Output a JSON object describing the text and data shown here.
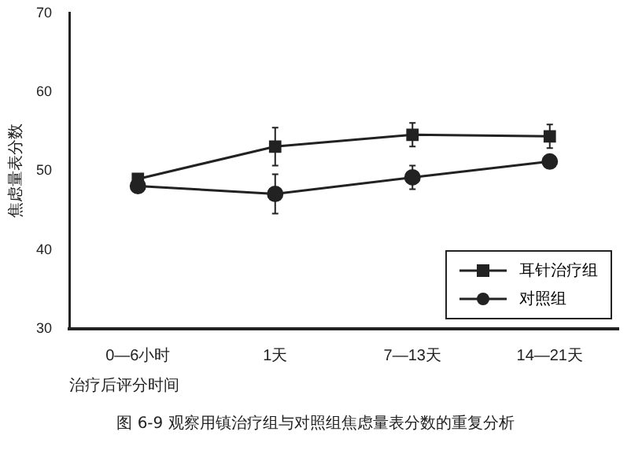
{
  "chart_data": {
    "type": "line",
    "title": "图 6-9 观察用镇治疗组与对照组焦虑量表分数的重复分析",
    "xlabel": "治疗后评分时间",
    "ylabel": "焦虑量表分数",
    "categories": [
      "0—6小时",
      "1天",
      "7—13天",
      "14—21天"
    ],
    "series": [
      {
        "name": "耳针治疗组",
        "color": "#222222",
        "marker": "square",
        "values": [
          49,
          53.1,
          54.6,
          54.4
        ],
        "errors": [
          null,
          2.4,
          1.5,
          1.5
        ]
      },
      {
        "name": "对照组",
        "color": "#222222",
        "marker": "circle",
        "values": [
          48.1,
          47.1,
          49.2,
          51.2
        ],
        "errors": [
          null,
          2.5,
          1.5,
          null
        ]
      }
    ],
    "ylim": [
      30,
      70
    ],
    "yticks": [
      30,
      40,
      50,
      60,
      70
    ],
    "grid": false,
    "legend": "bottom right"
  }
}
